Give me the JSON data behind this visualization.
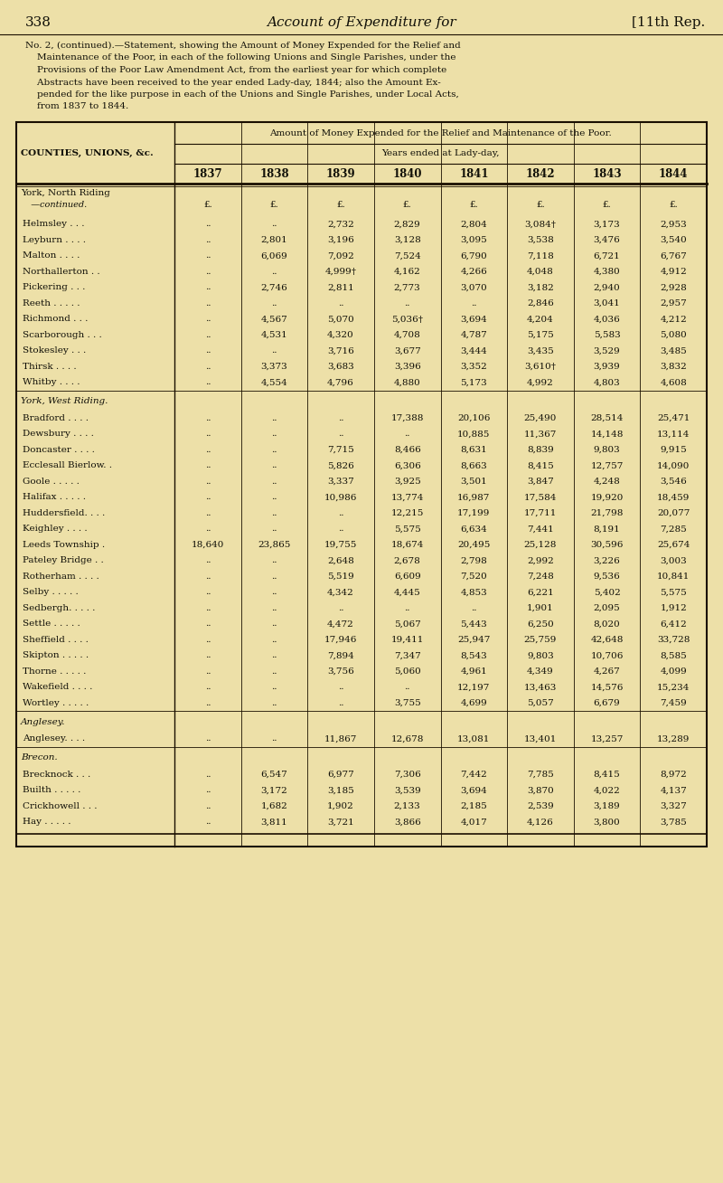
{
  "page_num": "338",
  "header_title": "Account of Expenditure for",
  "header_right": "[11th Rep.",
  "note_lines": [
    "No. 2, (continued).—Statement, showing the Amount of Money Expended for the Relief and",
    "    Maintenance of the Poor, in each of the following Unions and Single Parishes, under the",
    "    Provisions of the Poor Law Amendment Act, from the earliest year for which complete",
    "    Abstracts have been received to the year ended Lady-day, 1844; also the Amount Ex-",
    "    pended for the like purpose in each of the Unions and Single Parishes, under Local Acts,",
    "    from 1837 to 1844."
  ],
  "table_header1": "Amount of Money Expended for the Relief and Maintenance of the Poor.",
  "table_header2": "Years ended at Lady-day,",
  "col_header": "COUNTIES, UNIONS, &c.",
  "years": [
    "1837",
    "1838",
    "1839",
    "1840",
    "1841",
    "1842",
    "1843",
    "1844"
  ],
  "currency_symbol": "£.",
  "sections": [
    {
      "section_line1": "York, North Riding",
      "section_line2": "  —continued.",
      "show_currency": true,
      "rows": [
        {
          "name": "Helmsley . . .",
          "values": [
            "..",
            "..",
            "2,732",
            "2,829",
            "2,804",
            "3,084†",
            "3,173",
            "2,953"
          ]
        },
        {
          "name": "Leyburn . . . .",
          "values": [
            "..",
            "2,801",
            "3,196",
            "3,128",
            "3,095",
            "3,538",
            "3,476",
            "3,540"
          ]
        },
        {
          "name": "Malton . . . .",
          "values": [
            "..",
            "6,069",
            "7,092",
            "7,524",
            "6,790",
            "7,118",
            "6,721",
            "6,767"
          ]
        },
        {
          "name": "Northallerton . .",
          "values": [
            "..",
            "..",
            "4,999†",
            "4,162",
            "4,266",
            "4,048",
            "4,380",
            "4,912"
          ]
        },
        {
          "name": "Pickering . . .",
          "values": [
            "..",
            "2,746",
            "2,811",
            "2,773",
            "3,070",
            "3,182",
            "2,940",
            "2,928"
          ]
        },
        {
          "name": "Reeth . . . . .",
          "values": [
            "..",
            "..",
            "..",
            "..",
            "..",
            "2,846",
            "3,041",
            "2,957"
          ]
        },
        {
          "name": "Richmond . . .",
          "values": [
            "..",
            "4,567",
            "5,070",
            "5,036†",
            "3,694",
            "4,204",
            "4,036",
            "4,212"
          ]
        },
        {
          "name": "Scarborough . . .",
          "values": [
            "..",
            "4,531",
            "4,320",
            "4,708",
            "4,787",
            "5,175",
            "5,583",
            "5,080"
          ]
        },
        {
          "name": "Stokesley . . .",
          "values": [
            "..",
            "..",
            "3,716",
            "3,677",
            "3,444",
            "3,435",
            "3,529",
            "3,485"
          ]
        },
        {
          "name": "Thirsk . . . .",
          "values": [
            "..",
            "3,373",
            "3,683",
            "3,396",
            "3,352",
            "3,610†",
            "3,939",
            "3,832"
          ]
        },
        {
          "name": "Whitby . . . .",
          "values": [
            "..",
            "4,554",
            "4,796",
            "4,880",
            "5,173",
            "4,992",
            "4,803",
            "4,608"
          ]
        }
      ]
    },
    {
      "section_line1": "York, West Riding.",
      "section_line2": null,
      "show_currency": false,
      "rows": [
        {
          "name": "Bradford . . . .",
          "values": [
            "..",
            "..",
            "..",
            "17,388",
            "20,106",
            "25,490",
            "28,514",
            "25,471"
          ]
        },
        {
          "name": "Dewsbury . . . .",
          "values": [
            "..",
            "..",
            "..",
            "..",
            "10,885",
            "11,367",
            "14,148",
            "13,114"
          ]
        },
        {
          "name": "Doncaster . . . .",
          "values": [
            "..",
            "..",
            "7,715",
            "8,466",
            "8,631",
            "8,839",
            "9,803",
            "9,915"
          ]
        },
        {
          "name": "Ecclesall Bierlow. .",
          "values": [
            "..",
            "..",
            "5,826",
            "6,306",
            "8,663",
            "8,415",
            "12,757",
            "14,090"
          ]
        },
        {
          "name": "Goole . . . . .",
          "values": [
            "..",
            "..",
            "3,337",
            "3,925",
            "3,501",
            "3,847",
            "4,248",
            "3,546"
          ]
        },
        {
          "name": "Halifax . . . . .",
          "values": [
            "..",
            "..",
            "10,986",
            "13,774",
            "16,987",
            "17,584",
            "19,920",
            "18,459"
          ]
        },
        {
          "name": "Huddersfield. . . .",
          "values": [
            "..",
            "..",
            "..",
            "12,215",
            "17,199",
            "17,711",
            "21,798",
            "20,077"
          ]
        },
        {
          "name": "Keighley . . . .",
          "values": [
            "..",
            "..",
            "..",
            "5,575",
            "6,634",
            "7,441",
            "8,191",
            "7,285"
          ]
        },
        {
          "name": "Leeds Township .",
          "values": [
            "18,640",
            "23,865",
            "19,755",
            "18,674",
            "20,495",
            "25,128",
            "30,596",
            "25,674"
          ]
        },
        {
          "name": "Pateley Bridge . .",
          "values": [
            "..",
            "..",
            "2,648",
            "2,678",
            "2,798",
            "2,992",
            "3,226",
            "3,003"
          ]
        },
        {
          "name": "Rotherham . . . .",
          "values": [
            "..",
            "..",
            "5,519",
            "6,609",
            "7,520",
            "7,248",
            "9,536",
            "10,841"
          ]
        },
        {
          "name": "Selby . . . . .",
          "values": [
            "..",
            "..",
            "4,342",
            "4,445",
            "4,853",
            "6,221",
            "5,402",
            "5,575"
          ]
        },
        {
          "name": "Sedbergh. . . . .",
          "values": [
            "..",
            "..",
            "..",
            "..",
            "..",
            "1,901",
            "2,095",
            "1,912"
          ]
        },
        {
          "name": "Settle . . . . .",
          "values": [
            "..",
            "..",
            "4,472",
            "5,067",
            "5,443",
            "6,250",
            "8,020",
            "6,412"
          ]
        },
        {
          "name": "Sheffield . . . .",
          "values": [
            "..",
            "..",
            "17,946",
            "19,411",
            "25,947",
            "25,759",
            "42,648",
            "33,728"
          ]
        },
        {
          "name": "Skipton . . . . .",
          "values": [
            "..",
            "..",
            "7,894",
            "7,347",
            "8,543",
            "9,803",
            "10,706",
            "8,585"
          ]
        },
        {
          "name": "Thorne . . . . .",
          "values": [
            "..",
            "..",
            "3,756",
            "5,060",
            "4,961",
            "4,349",
            "4,267",
            "4,099"
          ]
        },
        {
          "name": "Wakefield . . . .",
          "values": [
            "..",
            "..",
            "..",
            "..",
            "12,197",
            "13,463",
            "14,576",
            "15,234"
          ]
        },
        {
          "name": "Wortley . . . . .",
          "values": [
            "..",
            "..",
            "..",
            "3,755",
            "4,699",
            "5,057",
            "6,679",
            "7,459"
          ]
        }
      ]
    },
    {
      "section_line1": "Anglesey.",
      "section_line2": null,
      "show_currency": false,
      "rows": [
        {
          "name": "Anglesey. . . .",
          "values": [
            "..",
            "..",
            "11,867",
            "12,678",
            "13,081",
            "13,401",
            "13,257",
            "13,289"
          ]
        }
      ]
    },
    {
      "section_line1": "Brecon.",
      "section_line2": null,
      "show_currency": false,
      "rows": [
        {
          "name": "Brecknock . . .",
          "values": [
            "..",
            "6,547",
            "6,977",
            "7,306",
            "7,442",
            "7,785",
            "8,415",
            "8,972"
          ]
        },
        {
          "name": "Builth . . . . .",
          "values": [
            "..",
            "3,172",
            "3,185",
            "3,539",
            "3,694",
            "3,870",
            "4,022",
            "4,137"
          ]
        },
        {
          "name": "Crickhowell . . .",
          "values": [
            "..",
            "1,682",
            "1,902",
            "2,133",
            "2,185",
            "2,539",
            "3,189",
            "3,327"
          ]
        },
        {
          "name": "Hay . . . . .",
          "values": [
            "..",
            "3,811",
            "3,721",
            "3,866",
            "4,017",
            "4,126",
            "3,800",
            "3,785"
          ]
        }
      ]
    }
  ],
  "bg_color": "#ede0a8",
  "text_color": "#111008",
  "table_bg": "#ede0a8",
  "line_color": "#1a0f00"
}
